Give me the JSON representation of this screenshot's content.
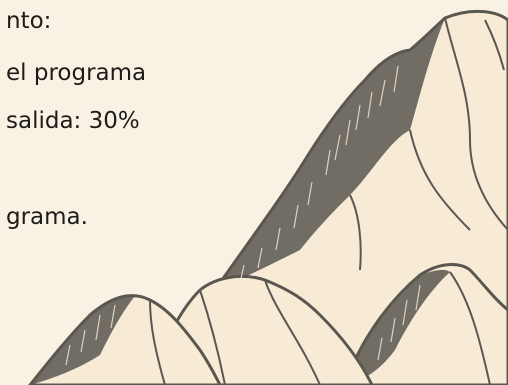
{
  "text_lines": [
    "nto:",
    "el programa",
    "salida: 30%",
    "grama."
  ],
  "colors": {
    "background": "#f9f1e3",
    "text": "#1d1c1a",
    "mountain_fill": "#f7ebd6",
    "mountain_ink": "#5a5750"
  },
  "illustration": "mountains-illustration"
}
